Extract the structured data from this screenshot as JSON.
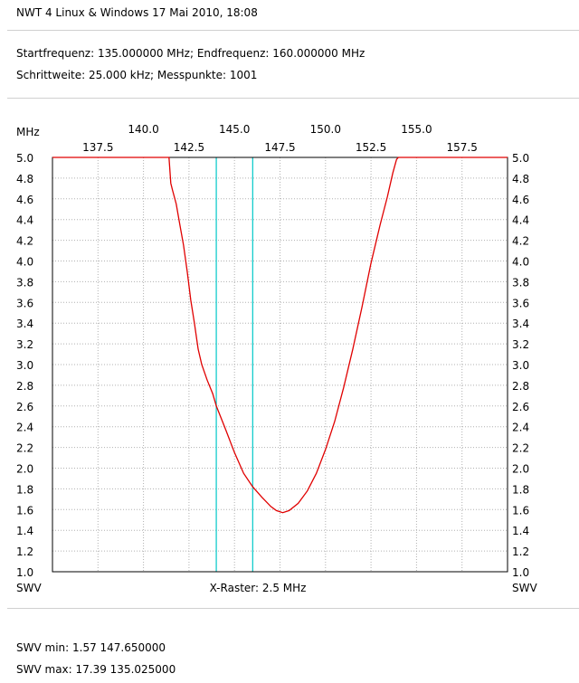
{
  "header": {
    "title": "NWT 4 Linux & Windows  17 Mai 2010, 18:08",
    "line1": "Startfrequenz: 135.000000 MHz; Endfrequenz: 160.000000 MHz",
    "line2": "Schrittweite: 25.000 kHz; Messpunkte: 1001"
  },
  "footer": {
    "swv_min": "SWV min: 1.57  147.650000",
    "swv_max": "SWV max: 17.39  135.025000"
  },
  "chart_data": {
    "type": "line",
    "title": "",
    "xlabel": "X-Raster: 2.5 MHz",
    "ylabel_left_top": "MHz",
    "ylabel_left_bottom": "SWV",
    "ylabel_right_bottom": "SWV",
    "xlim": [
      135.0,
      160.0
    ],
    "ylim": [
      1.0,
      5.0
    ],
    "x_ticks_upper": [
      "140.0",
      "145.0",
      "150.0",
      "155.0"
    ],
    "x_ticks_lower": [
      "137.5",
      "142.5",
      "147.5",
      "152.5",
      "157.5"
    ],
    "y_ticks": [
      "5.0",
      "4.8",
      "4.6",
      "4.4",
      "4.2",
      "4.0",
      "3.8",
      "3.6",
      "3.4",
      "3.2",
      "3.0",
      "2.8",
      "2.6",
      "2.4",
      "2.2",
      "2.0",
      "1.8",
      "1.6",
      "1.4",
      "1.2",
      "1.0"
    ],
    "grid": true,
    "markers": [
      144.0,
      146.0
    ],
    "colors": {
      "curve": "#e00000",
      "marker": "#00c8c8",
      "grid": "#b0b0b0",
      "frame": "#000000"
    },
    "series": [
      {
        "x": [
          135.0,
          141.4,
          141.5,
          141.6,
          141.8,
          142.0,
          142.2,
          142.4,
          142.6,
          142.8,
          143.0,
          143.2,
          143.5,
          143.8,
          144.0,
          144.5,
          145.0,
          145.5,
          146.0,
          146.5,
          147.0,
          147.3,
          147.65,
          148.0,
          148.5,
          149.0,
          149.5,
          150.0,
          150.5,
          151.0,
          151.5,
          152.0,
          152.5,
          153.0,
          153.4,
          153.7,
          153.9,
          154.0,
          160.0
        ],
        "y": [
          5.0,
          5.0,
          4.75,
          4.68,
          4.55,
          4.35,
          4.15,
          3.9,
          3.62,
          3.4,
          3.15,
          3.0,
          2.85,
          2.72,
          2.6,
          2.38,
          2.15,
          1.95,
          1.82,
          1.72,
          1.63,
          1.59,
          1.57,
          1.59,
          1.66,
          1.78,
          1.95,
          2.18,
          2.45,
          2.78,
          3.15,
          3.55,
          3.98,
          4.35,
          4.62,
          4.85,
          4.98,
          5.0,
          5.0
        ]
      }
    ]
  }
}
